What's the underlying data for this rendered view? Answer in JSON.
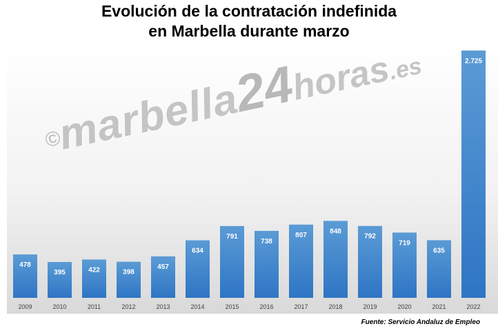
{
  "title_line1": "Evolución de la contratación indefinida",
  "title_line2": "en Marbella durante marzo",
  "watermark": {
    "copy": "©",
    "main": "marbella",
    "num": "24",
    "horas": "horas",
    "es": ".es"
  },
  "source": "Fuente: Servicio Andaluz de Empleo",
  "colors": {
    "bar_top": "#5b9bd5",
    "bar_bottom": "#2e75c4",
    "label": "#ffffff",
    "tick": "#404040"
  },
  "chart_data": {
    "type": "bar",
    "title": "Evolución de la contratación indefinida en Marbella durante marzo",
    "categories": [
      "2009",
      "2010",
      "2011",
      "2012",
      "2013",
      "2014",
      "2015",
      "2016",
      "2017",
      "2018",
      "2019",
      "2020",
      "2021",
      "2022"
    ],
    "values": [
      478,
      395,
      422,
      398,
      457,
      634,
      791,
      738,
      807,
      848,
      792,
      719,
      635,
      2725
    ],
    "value_labels": [
      "478",
      "395",
      "422",
      "398",
      "457",
      "634",
      "791",
      "738",
      "807",
      "848",
      "792",
      "719",
      "635",
      "2.725"
    ],
    "ylim": [
      0,
      2750
    ],
    "grid": false,
    "legend": false
  }
}
